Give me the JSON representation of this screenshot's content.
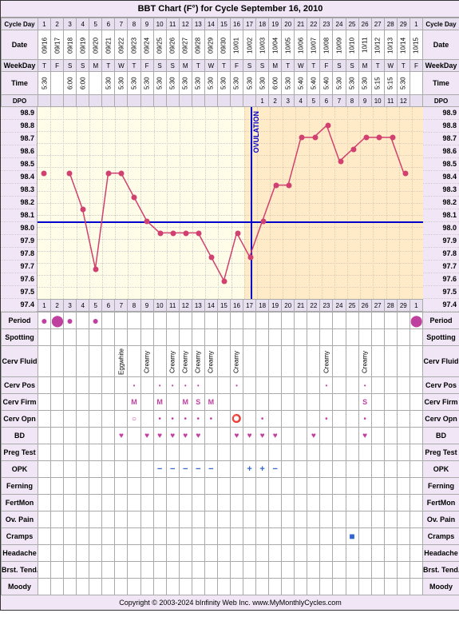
{
  "title": "BBT Chart (F°) for Cycle September 16, 2010",
  "cycleDays": [
    "1",
    "2",
    "3",
    "4",
    "5",
    "6",
    "7",
    "8",
    "9",
    "10",
    "11",
    "12",
    "13",
    "14",
    "15",
    "16",
    "17",
    "18",
    "19",
    "20",
    "21",
    "22",
    "23",
    "24",
    "25",
    "26",
    "27",
    "28",
    "29",
    "1"
  ],
  "dates": [
    "09/16",
    "09/17",
    "09/18",
    "09/19",
    "09/20",
    "09/21",
    "09/22",
    "09/23",
    "09/24",
    "09/25",
    "09/26",
    "09/27",
    "09/28",
    "09/29",
    "09/30",
    "10/01",
    "10/02",
    "10/03",
    "10/04",
    "10/05",
    "10/06",
    "10/07",
    "10/08",
    "10/09",
    "10/10",
    "10/11",
    "10/12",
    "10/13",
    "10/14",
    "10/15"
  ],
  "weekdays": [
    "T",
    "F",
    "S",
    "S",
    "M",
    "T",
    "W",
    "T",
    "F",
    "S",
    "S",
    "M",
    "T",
    "W",
    "T",
    "F",
    "S",
    "S",
    "M",
    "T",
    "W",
    "T",
    "F",
    "S",
    "S",
    "M",
    "T",
    "W",
    "T",
    "F"
  ],
  "times": [
    "5:30",
    "",
    "6:00",
    "6:00",
    "",
    "5:30",
    "5:30",
    "5:30",
    "5:30",
    "5:30",
    "5:30",
    "5:30",
    "5:30",
    "5:30",
    "5:30",
    "5:30",
    "5:30",
    "5:30",
    "6:00",
    "5:30",
    "5:40",
    "5:40",
    "5:40",
    "5:30",
    "5:30",
    "5:30",
    "5:15",
    "5:15",
    "5:30",
    ""
  ],
  "dpo": [
    "",
    "",
    "",
    "",
    "",
    "",
    "",
    "",
    "",
    "",
    "",
    "",
    "",
    "",
    "",
    "",
    "",
    "1",
    "2",
    "3",
    "4",
    "5",
    "6",
    "7",
    "8",
    "9",
    "10",
    "11",
    "12",
    ""
  ],
  "yLabels": [
    "98.9",
    "98.8",
    "98.7",
    "98.6",
    "98.5",
    "98.4",
    "98.3",
    "98.2",
    "98.1",
    "98.0",
    "97.9",
    "97.8",
    "97.7",
    "97.6",
    "97.5",
    "97.4"
  ],
  "temps": [
    98.4,
    null,
    98.4,
    98.1,
    97.6,
    98.4,
    98.4,
    98.2,
    98.0,
    97.9,
    97.9,
    97.9,
    97.9,
    97.7,
    97.5,
    97.9,
    97.7,
    98.0,
    98.3,
    98.3,
    98.7,
    98.7,
    98.8,
    98.5,
    98.6,
    98.7,
    98.7,
    98.7,
    98.4,
    null
  ],
  "coverline": 98.0,
  "ovulationDay": 17,
  "lutealStartDay": 17,
  "rowLabels": {
    "cycleDay": "Cycle Day",
    "date": "Date",
    "weekday": "WeekDay",
    "time": "Time",
    "dpo": "DPO",
    "period": "Period",
    "spotting": "Spotting",
    "cervFluid": "Cerv Fluid",
    "cervPos": "Cerv Pos",
    "cervFirm": "Cerv Firm",
    "cervOpn": "Cerv Opn",
    "bd": "BD",
    "pregTest": "Preg Test",
    "opk": "OPK",
    "ferning": "Ferning",
    "fertMon": "FertMon",
    "ovPain": "Ov. Pain",
    "cramps": "Cramps",
    "headache": "Headache",
    "brstTend": "Brst. Tend.",
    "moody": "Moody"
  },
  "period": [
    "●",
    "⬤",
    "●",
    "",
    "●",
    "",
    "",
    "",
    "",
    "",
    "",
    "",
    "",
    "",
    "",
    "",
    "",
    "",
    "",
    "",
    "",
    "",
    "",
    "",
    "",
    "",
    "",
    "",
    "",
    "⬤"
  ],
  "cervFluid": [
    "",
    "",
    "",
    "",
    "",
    "",
    "Eggwhite",
    "",
    "Creamy",
    "",
    "Creamy",
    "Creamy",
    "Creamy",
    "Creamy",
    "",
    "Creamy",
    "",
    "",
    "",
    "",
    "",
    "",
    "Creamy",
    "",
    "",
    "Creamy",
    "",
    "",
    "",
    ""
  ],
  "cervPos": [
    "",
    "",
    "",
    "",
    "",
    "",
    "",
    "•",
    "",
    "•",
    "•",
    "•",
    "•",
    "",
    "",
    "•",
    "",
    "",
    "",
    "",
    "",
    "",
    "•",
    "",
    "",
    "•",
    "",
    "",
    "",
    ""
  ],
  "cervFirm": [
    "",
    "",
    "",
    "",
    "",
    "",
    "",
    "M",
    "",
    "M",
    "",
    "M",
    "S",
    "M",
    "",
    "",
    "",
    "",
    "",
    "",
    "",
    "",
    "",
    "",
    "",
    "S",
    "",
    "",
    "",
    ""
  ],
  "cervOpn": [
    "",
    "",
    "",
    "",
    "",
    "",
    "",
    "○",
    "",
    "•",
    "•",
    "•",
    "•",
    "•",
    "",
    "⭕",
    "",
    "•",
    "",
    "",
    "",
    "",
    "•",
    "",
    "",
    "•",
    "",
    "",
    "",
    ""
  ],
  "bd": [
    "",
    "",
    "",
    "",
    "",
    "",
    "♥",
    "",
    "♥",
    "♥",
    "♥",
    "♥",
    "♥",
    "",
    "",
    "♥",
    "♥",
    "♥",
    "♥",
    "",
    "",
    "♥",
    "",
    "",
    "",
    "♥",
    "",
    "",
    "",
    ""
  ],
  "opk": [
    "",
    "",
    "",
    "",
    "",
    "",
    "",
    "",
    "",
    "−",
    "−",
    "−",
    "−",
    "−",
    "",
    "",
    "+",
    "+",
    "−",
    "",
    "",
    "",
    "",
    "",
    "",
    "",
    "",
    "",
    "",
    ""
  ],
  "cramps": [
    "",
    "",
    "",
    "",
    "",
    "",
    "",
    "",
    "",
    "",
    "",
    "",
    "",
    "",
    "",
    "",
    "",
    "",
    "",
    "",
    "",
    "",
    "",
    "",
    "■",
    "",
    "",
    "",
    "",
    ""
  ],
  "copyright": "Copyright © 2003-2024 bInfinity Web Inc.    www.MyMonthlyCycles.com",
  "colors": {
    "tempLine": "#d04070",
    "coverline": "#0000cc",
    "lutealShade": "rgba(255,200,140,0.35)",
    "background": "#fffde8",
    "headerBg": "#f0e6f5"
  },
  "chart": {
    "yMin": 97.4,
    "yMax": 98.9,
    "yStep": 0.1
  }
}
